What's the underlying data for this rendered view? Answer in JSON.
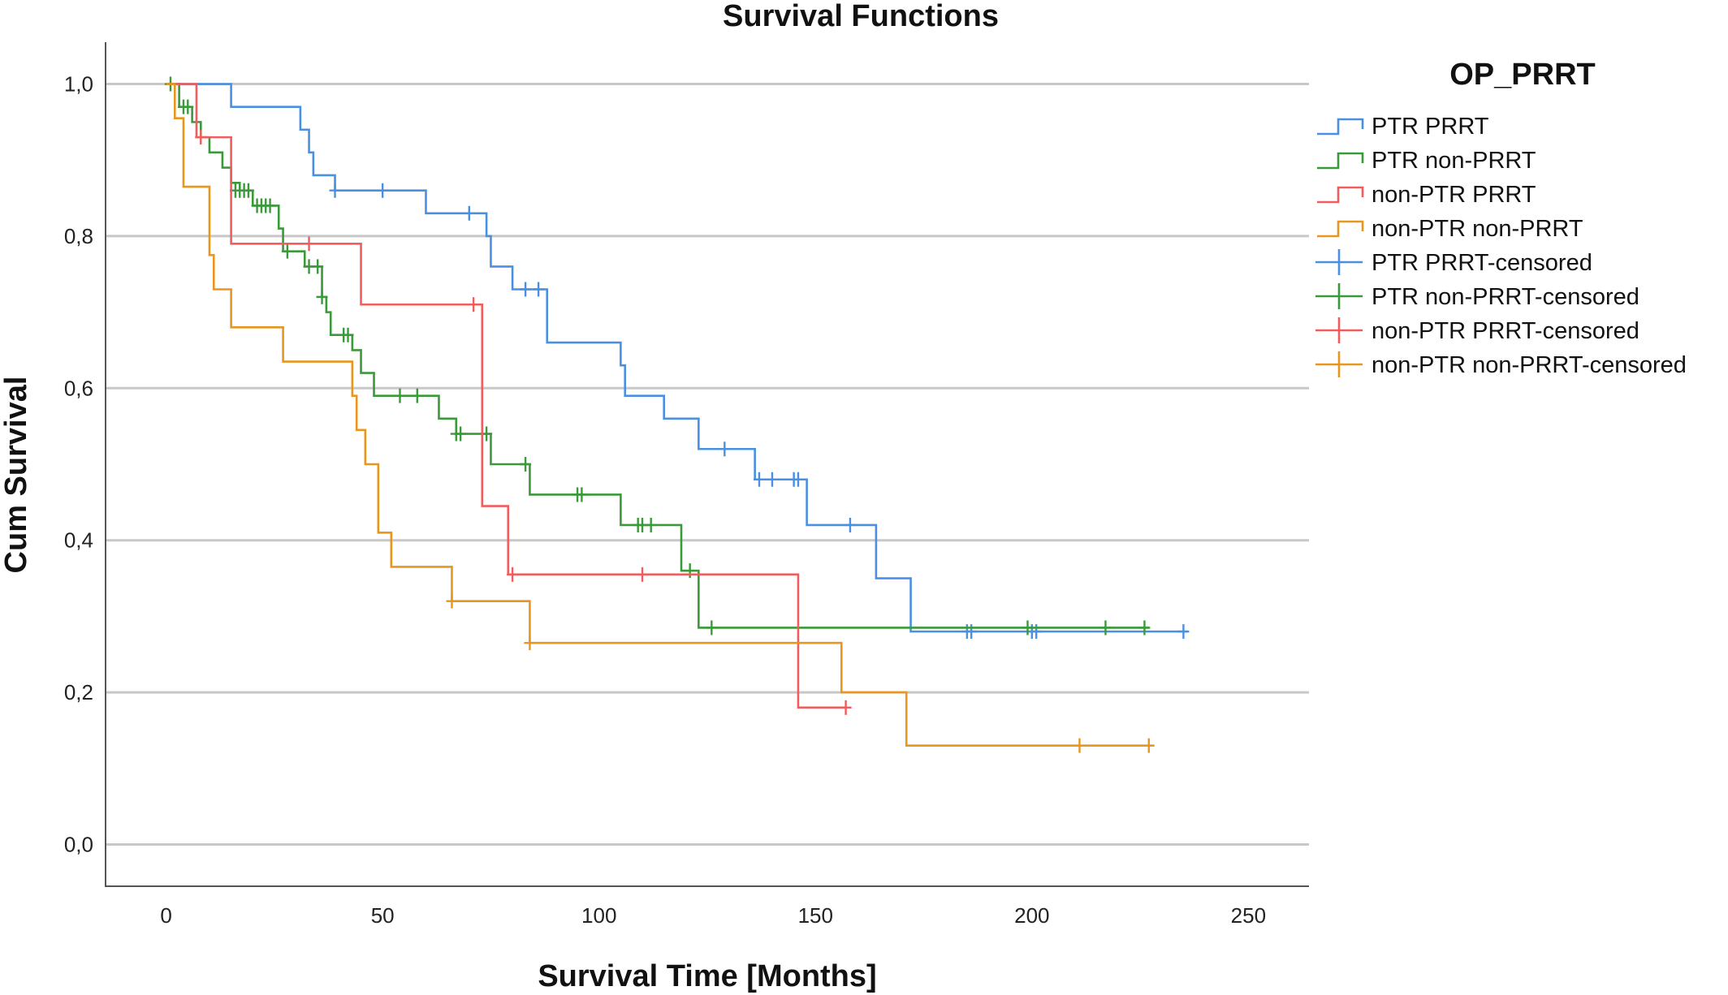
{
  "chart_data": {
    "type": "line",
    "subtype": "kaplan-meier-step",
    "title": "Survival Functions",
    "xlabel": "Survival Time [Months]",
    "ylabel": "Cum Survival",
    "xlim": [
      -14,
      264
    ],
    "ylim": [
      -0.055,
      1.055
    ],
    "x_ticks": [
      0,
      50,
      100,
      150,
      200,
      250
    ],
    "x_tick_labels": [
      "0",
      "50",
      "100",
      "150",
      "200",
      "250"
    ],
    "y_ticks": [
      0,
      0.2,
      0.4,
      0.6,
      0.8,
      1.0
    ],
    "y_tick_labels": [
      "0,0",
      "0,2",
      "0,4",
      "0,6",
      "0,8",
      "1,0"
    ],
    "grid": "horizontal",
    "legend": {
      "title": "OP_PRRT",
      "placement": "right",
      "entries": [
        "PTR PRRT",
        "PTR non-PRRT",
        "non-PTR PRRT",
        "non-PTR non-PRRT",
        "PTR PRRT-censored",
        "PTR non-PRRT-censored",
        "non-PTR PRRT-censored",
        "non-PTR non-PRRT-censored"
      ]
    },
    "series": [
      {
        "name": "PTR PRRT",
        "color": "#4a90e2",
        "steps": [
          [
            0,
            1.0
          ],
          [
            15,
            0.97
          ],
          [
            31,
            0.94
          ],
          [
            33,
            0.91
          ],
          [
            34,
            0.88
          ],
          [
            39,
            0.86
          ],
          [
            60,
            0.83
          ],
          [
            74,
            0.8
          ],
          [
            75,
            0.76
          ],
          [
            80,
            0.73
          ],
          [
            88,
            0.66
          ],
          [
            105,
            0.63
          ],
          [
            106,
            0.59
          ],
          [
            115,
            0.56
          ],
          [
            123,
            0.52
          ],
          [
            136,
            0.48
          ],
          [
            148,
            0.42
          ],
          [
            164,
            0.35
          ],
          [
            172,
            0.28
          ],
          [
            236,
            0.28
          ]
        ],
        "censored": [
          [
            39,
            0.86
          ],
          [
            50,
            0.86
          ],
          [
            70,
            0.83
          ],
          [
            83,
            0.73
          ],
          [
            86,
            0.73
          ],
          [
            129,
            0.52
          ],
          [
            137,
            0.48
          ],
          [
            140,
            0.48
          ],
          [
            145,
            0.48
          ],
          [
            146,
            0.48
          ],
          [
            158,
            0.42
          ],
          [
            185,
            0.28
          ],
          [
            186,
            0.28
          ],
          [
            200,
            0.28
          ],
          [
            201,
            0.28
          ],
          [
            235,
            0.28
          ]
        ]
      },
      {
        "name": "PTR non-PRRT",
        "color": "#3a9a3a",
        "steps": [
          [
            0,
            1.0
          ],
          [
            3,
            0.97
          ],
          [
            6,
            0.95
          ],
          [
            8,
            0.93
          ],
          [
            10,
            0.91
          ],
          [
            13,
            0.89
          ],
          [
            15,
            0.87
          ],
          [
            17,
            0.86
          ],
          [
            20,
            0.84
          ],
          [
            26,
            0.81
          ],
          [
            27,
            0.78
          ],
          [
            32,
            0.76
          ],
          [
            36,
            0.72
          ],
          [
            37,
            0.7
          ],
          [
            38,
            0.67
          ],
          [
            43,
            0.65
          ],
          [
            45,
            0.62
          ],
          [
            48,
            0.59
          ],
          [
            63,
            0.56
          ],
          [
            67,
            0.54
          ],
          [
            75,
            0.5
          ],
          [
            84,
            0.46
          ],
          [
            105,
            0.42
          ],
          [
            119,
            0.36
          ],
          [
            123,
            0.285
          ],
          [
            227,
            0.285
          ]
        ],
        "censored": [
          [
            1,
            1.0
          ],
          [
            4,
            0.97
          ],
          [
            5,
            0.97
          ],
          [
            16,
            0.86
          ],
          [
            17,
            0.86
          ],
          [
            18,
            0.86
          ],
          [
            19,
            0.86
          ],
          [
            21,
            0.84
          ],
          [
            22,
            0.84
          ],
          [
            23,
            0.84
          ],
          [
            24,
            0.84
          ],
          [
            28,
            0.78
          ],
          [
            33,
            0.76
          ],
          [
            35,
            0.76
          ],
          [
            36,
            0.72
          ],
          [
            41,
            0.67
          ],
          [
            42,
            0.67
          ],
          [
            54,
            0.59
          ],
          [
            58,
            0.59
          ],
          [
            67,
            0.54
          ],
          [
            68,
            0.54
          ],
          [
            74,
            0.54
          ],
          [
            83,
            0.5
          ],
          [
            95,
            0.46
          ],
          [
            96,
            0.46
          ],
          [
            109,
            0.42
          ],
          [
            110,
            0.42
          ],
          [
            112,
            0.42
          ],
          [
            121,
            0.36
          ],
          [
            126,
            0.285
          ],
          [
            199,
            0.285
          ],
          [
            217,
            0.285
          ],
          [
            226,
            0.285
          ]
        ]
      },
      {
        "name": "non-PTR PRRT",
        "color": "#f25c5c",
        "steps": [
          [
            0,
            1.0
          ],
          [
            7,
            0.93
          ],
          [
            15,
            0.79
          ],
          [
            45,
            0.71
          ],
          [
            73,
            0.445
          ],
          [
            79,
            0.355
          ],
          [
            146,
            0.18
          ],
          [
            157,
            0.18
          ]
        ],
        "censored": [
          [
            8,
            0.93
          ],
          [
            33,
            0.79
          ],
          [
            71,
            0.71
          ],
          [
            80,
            0.355
          ],
          [
            110,
            0.355
          ],
          [
            157,
            0.18
          ]
        ]
      },
      {
        "name": "non-PTR non-PRRT",
        "color": "#e8961e",
        "steps": [
          [
            0,
            1.0
          ],
          [
            2,
            0.955
          ],
          [
            4,
            0.865
          ],
          [
            10,
            0.775
          ],
          [
            11,
            0.73
          ],
          [
            15,
            0.68
          ],
          [
            27,
            0.635
          ],
          [
            43,
            0.59
          ],
          [
            44,
            0.545
          ],
          [
            46,
            0.5
          ],
          [
            49,
            0.41
          ],
          [
            52,
            0.365
          ],
          [
            66,
            0.32
          ],
          [
            84,
            0.265
          ],
          [
            156,
            0.2
          ],
          [
            171,
            0.13
          ],
          [
            228,
            0.13
          ]
        ],
        "censored": [
          [
            66,
            0.32
          ],
          [
            84,
            0.265
          ],
          [
            211,
            0.13
          ],
          [
            227,
            0.13
          ]
        ]
      }
    ]
  }
}
